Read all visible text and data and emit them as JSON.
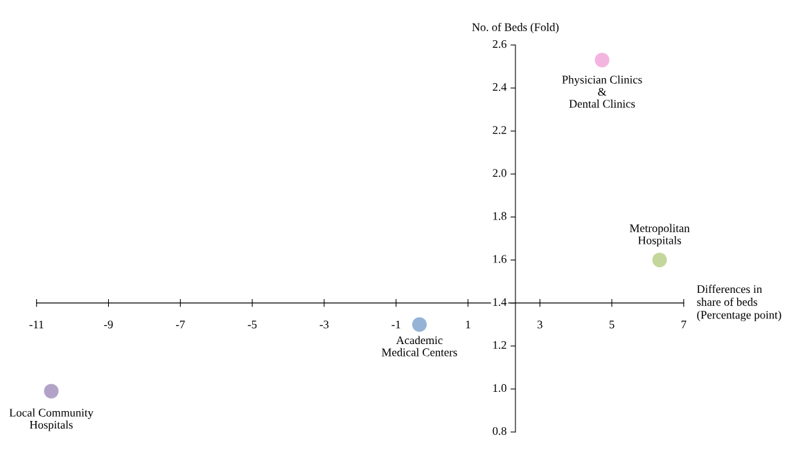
{
  "chart_data": {
    "type": "scatter",
    "xlabel": "Differences in\nshare of beds\n(Percentage point)",
    "ylabel": "No. of Beds (Fold)",
    "xlim": [
      -11,
      7
    ],
    "xticks": [
      -11,
      -9,
      -7,
      -5,
      -3,
      -1,
      1,
      3,
      5,
      7
    ],
    "ylim": [
      0.8,
      2.6
    ],
    "yticks": [
      {
        "value": 0.8,
        "label": "0.8"
      },
      {
        "value": 1.0,
        "label": "1.0"
      },
      {
        "value": 1.2,
        "label": "1.2"
      },
      {
        "value": 1.4,
        "label": "1.4"
      },
      {
        "value": 1.6,
        "label": "1.6"
      },
      {
        "value": 1.8,
        "label": "1.8"
      },
      {
        "value": 2.0,
        "label": "2.0"
      },
      {
        "value": 2.2,
        "label": "2.2"
      },
      {
        "value": 2.4,
        "label": "2.4"
      },
      {
        "value": 2.6,
        "label": "2.6"
      }
    ],
    "marker": "circle",
    "grid": false,
    "legend": false,
    "series": [
      {
        "name": "Physician Clinics\n&\nDental Clinics",
        "color": "#f4b4e0",
        "x": [
          4.73
        ],
        "values": [
          2.53
        ]
      },
      {
        "name": "Metropolitan\nHospitals",
        "color": "#c3d69b",
        "x": [
          6.33
        ],
        "values": [
          1.6
        ]
      },
      {
        "name": "Academic\nMedical Centers",
        "color": "#95b3d7",
        "x": [
          -0.35
        ],
        "values": [
          1.3
        ]
      },
      {
        "name": "Local Community\nHospitals",
        "color": "#b3a2c7",
        "x": [
          -10.59
        ],
        "values": [
          0.99
        ]
      }
    ]
  }
}
